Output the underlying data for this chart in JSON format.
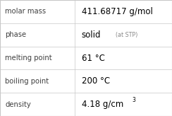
{
  "rows": [
    {
      "label": "molar mass",
      "value": "411.68717 g/mol",
      "suffix": null,
      "superscript": null
    },
    {
      "label": "phase",
      "value": "solid",
      "suffix": "  (at STP)",
      "superscript": null
    },
    {
      "label": "melting point",
      "value": "61 °C",
      "suffix": null,
      "superscript": null
    },
    {
      "label": "boiling point",
      "value": "200 °C",
      "suffix": null,
      "superscript": null
    },
    {
      "label": "density",
      "value": "4.18 g/cm",
      "suffix": null,
      "superscript": "3"
    }
  ],
  "col_split": 0.435,
  "background_color": "#ffffff",
  "line_color": "#c8c8c8",
  "label_color": "#404040",
  "value_color": "#000000",
  "suffix_color": "#888888",
  "label_fontsize": 7.2,
  "value_fontsize": 8.5,
  "suffix_fontsize": 5.8,
  "super_fontsize": 5.5
}
